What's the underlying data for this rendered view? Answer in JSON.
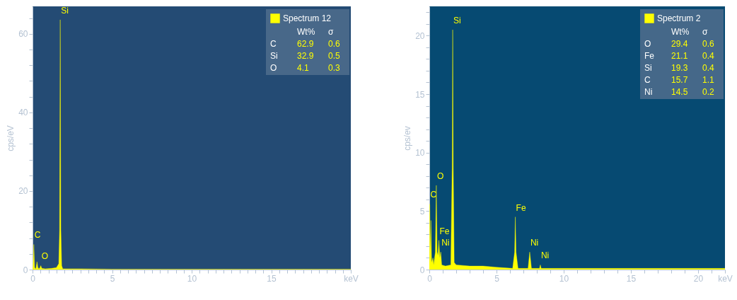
{
  "chart_data": [
    {
      "type": "area",
      "ylabel": "cps/eV",
      "xlim": [
        0,
        20
      ],
      "ylim": [
        0,
        67
      ],
      "xticks": [
        0,
        {
          "value": 0.5,
          "label": null
        },
        {
          "value": 1,
          "label": null
        },
        {
          "value": 1.5,
          "label": null
        },
        {
          "value": 2,
          "label": null
        },
        {
          "value": 2.5,
          "label": null
        },
        {
          "value": 3,
          "label": null
        },
        {
          "value": 3.5,
          "label": null
        },
        {
          "value": 4,
          "label": null
        },
        {
          "value": 4.5,
          "label": null
        },
        5,
        {
          "value": 5.5,
          "label": null
        },
        {
          "value": 6,
          "label": null
        },
        {
          "value": 6.5,
          "label": null
        },
        {
          "value": 7,
          "label": null
        },
        {
          "value": 7.5,
          "label": null
        },
        {
          "value": 8,
          "label": null
        },
        {
          "value": 8.5,
          "label": null
        },
        {
          "value": 9,
          "label": null
        },
        {
          "value": 9.5,
          "label": null
        },
        10,
        {
          "value": 10.5,
          "label": null
        },
        {
          "value": 11,
          "label": null
        },
        {
          "value": 11.5,
          "label": null
        },
        {
          "value": 12,
          "label": null
        },
        {
          "value": 12.5,
          "label": null
        },
        {
          "value": 13,
          "label": null
        },
        {
          "value": 13.5,
          "label": null
        },
        {
          "value": 14,
          "label": null
        },
        {
          "value": 14.5,
          "label": null
        },
        15,
        {
          "value": 15.5,
          "label": null
        },
        {
          "value": 16,
          "label": null
        },
        {
          "value": 16.5,
          "label": null
        },
        {
          "value": 17,
          "label": null
        },
        {
          "value": 17.5,
          "label": null
        },
        {
          "value": 18,
          "label": null
        },
        {
          "value": 18.5,
          "label": null
        },
        {
          "value": 19,
          "label": null
        },
        {
          "value": 19.5,
          "label": null
        },
        {
          "value": 20,
          "label": "keV"
        }
      ],
      "yticks": [
        0,
        {
          "value": 4,
          "label": null
        },
        {
          "value": 8,
          "label": null
        },
        {
          "value": 12,
          "label": null
        },
        {
          "value": 16,
          "label": null
        },
        20,
        {
          "value": 24,
          "label": null
        },
        {
          "value": 28,
          "label": null
        },
        {
          "value": 32,
          "label": null
        },
        {
          "value": 36,
          "label": null
        },
        40,
        {
          "value": 44,
          "label": null
        },
        {
          "value": 48,
          "label": null
        },
        {
          "value": 52,
          "label": null
        },
        {
          "value": 56,
          "label": null
        },
        60,
        {
          "value": 64,
          "label": null
        }
      ],
      "legend": "top right",
      "series": [
        {
          "name": "Spectrum 12",
          "color": "#ffff00",
          "x": [
            0,
            0.03,
            0.08,
            0.13,
            0.2,
            0.23,
            0.28,
            0.33,
            0.4,
            0.46,
            0.52,
            0.58,
            0.8,
            1.2,
            1.5,
            1.65,
            1.7,
            1.74,
            1.78,
            1.83,
            1.9,
            3,
            5,
            10,
            15,
            20
          ],
          "values": [
            0,
            0.5,
            6.4,
            0.5,
            0.2,
            0.6,
            2,
            0.6,
            0.2,
            0.4,
            1,
            0.3,
            0.2,
            0.3,
            0.5,
            1.5,
            10,
            63.6,
            10,
            1,
            0.2,
            0.2,
            0.1,
            0.1,
            0.1,
            0.1
          ]
        }
      ],
      "annotations": [
        {
          "text": "Si",
          "x": 1.74,
          "y": 63.6
        },
        {
          "text": "C",
          "x": 0.08,
          "y": 6.4
        },
        {
          "text": "O",
          "x": 0.52,
          "y": 1
        },
        "Wt%",
        "σ",
        "C",
        "62.9",
        "0.6",
        "Si",
        "32.9",
        "0.5",
        "O",
        "4.1",
        "0.3"
      ]
    },
    {
      "type": "area",
      "ylabel": "cps/ev",
      "xlim": [
        0,
        22
      ],
      "ylim": [
        0,
        22.5
      ],
      "xticks": [
        0,
        {
          "value": 1,
          "label": null
        },
        {
          "value": 2,
          "label": null
        },
        {
          "value": 3,
          "label": null
        },
        {
          "value": 4,
          "label": null
        },
        5,
        {
          "value": 6,
          "label": null
        },
        {
          "value": 7,
          "label": null
        },
        {
          "value": 8,
          "label": null
        },
        {
          "value": 9,
          "label": null
        },
        10,
        {
          "value": 11,
          "label": null
        },
        {
          "value": 12,
          "label": null
        },
        {
          "value": 13,
          "label": null
        },
        {
          "value": 14,
          "label": null
        },
        15,
        {
          "value": 16,
          "label": null
        },
        {
          "value": 17,
          "label": null
        },
        {
          "value": 18,
          "label": null
        },
        {
          "value": 19,
          "label": null
        },
        20,
        {
          "value": 21,
          "label": null
        },
        {
          "value": 22,
          "label": "keV"
        }
      ],
      "yticks": [
        0,
        {
          "value": 1,
          "label": null
        },
        {
          "value": 2,
          "label": null
        },
        {
          "value": 3,
          "label": null
        },
        {
          "value": 4,
          "label": null
        },
        5,
        {
          "value": 6,
          "label": null
        },
        {
          "value": 7,
          "label": null
        },
        {
          "value": 8,
          "label": null
        },
        {
          "value": 9,
          "label": null
        },
        10,
        {
          "value": 11,
          "label": null
        },
        {
          "value": 12,
          "label": null
        },
        {
          "value": 13,
          "label": null
        },
        {
          "value": 14,
          "label": null
        },
        15,
        {
          "value": 16,
          "label": null
        },
        {
          "value": 17,
          "label": null
        },
        {
          "value": 18,
          "label": null
        },
        {
          "value": 19,
          "label": null
        },
        20,
        {
          "value": 21,
          "label": null
        },
        {
          "value": 22,
          "label": null
        }
      ],
      "legend": "top right",
      "series": [
        {
          "name": "Spectrum 2",
          "color": "#ffff00",
          "x": [
            0,
            0.03,
            0.08,
            0.12,
            0.17,
            0.27,
            0.32,
            0.45,
            0.52,
            0.58,
            0.65,
            0.71,
            0.78,
            0.85,
            0.92,
            1.2,
            1.6,
            1.7,
            1.74,
            1.78,
            1.85,
            2,
            3,
            4,
            5,
            6.2,
            6.35,
            6.4,
            6.45,
            6.6,
            7.35,
            7.47,
            7.6,
            8.2,
            8.26,
            8.32,
            10,
            15,
            22
          ],
          "values": [
            0.3,
            5.6,
            1.5,
            4.2,
            0.6,
            1,
            0.4,
            1.5,
            7.2,
            1.5,
            1.2,
            2.5,
            1,
            1.5,
            0.4,
            0.3,
            0.4,
            8.7,
            20.5,
            8.7,
            0.6,
            0.4,
            0.3,
            0.3,
            0.2,
            0.1,
            1.5,
            4.5,
            1.5,
            0.1,
            0.1,
            1.5,
            0.1,
            0.1,
            0.4,
            0.1,
            0.1,
            0.1,
            0.1
          ]
        }
      ],
      "annotations": [
        {
          "text": "Si",
          "x": 1.74,
          "y": 20.5
        },
        {
          "text": "O",
          "x": 0.52,
          "y": 7.2
        },
        {
          "text": "C",
          "x": 0.03,
          "y": 5.6
        },
        {
          "text": "Fe",
          "x": 0.71,
          "y": 2.5
        },
        {
          "text": "Ni",
          "x": 0.85,
          "y": 1.5
        },
        {
          "text": "Fe",
          "x": 6.4,
          "y": 4.5
        },
        {
          "text": "Ni",
          "x": 7.47,
          "y": 1.5
        },
        {
          "text": "Ni",
          "x": 8.26,
          "y": 0.4
        },
        "Wt%",
        "σ",
        "O",
        "29.4",
        "0.6",
        "Fe",
        "21.1",
        "0.4",
        "Si",
        "19.3",
        "0.4",
        "C",
        "15.7",
        "1.1",
        "Ni",
        "14.5",
        "0.2"
      ]
    }
  ]
}
